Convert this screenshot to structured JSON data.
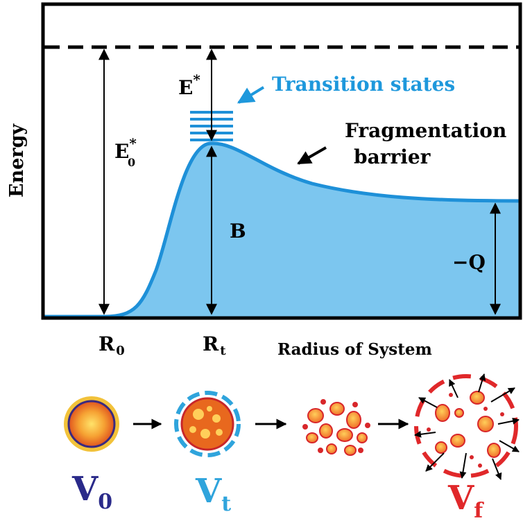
{
  "diagram": {
    "y_axis_label": "Energy",
    "x_axis_label": "Radius of System",
    "x_ticks": {
      "r0": "R",
      "r0_sub": "0",
      "rt": "R",
      "rt_sub": "t"
    },
    "energy_labels": {
      "e_star": "E",
      "e_star_sup": "*",
      "e0_star": "E",
      "e0_star_sup": "*",
      "e0_star_sub": "0",
      "barrier_height": "B",
      "q_value": "−Q"
    },
    "annotations": {
      "transition_states": "Transition states",
      "fragmentation_line1": "Fragmentation",
      "fragmentation_line2": "barrier"
    },
    "stages": [
      {
        "symbol": "V",
        "subscript": "0",
        "color": "#2a2a8a"
      },
      {
        "symbol": "V",
        "subscript": "t",
        "color": "#2fa4dc"
      },
      {
        "symbol": "V",
        "subscript": "f",
        "color": "#e0282a"
      }
    ],
    "colors": {
      "curve": "#1e90d8",
      "fill": "#7cc6ef",
      "transition_text": "#1e98dc",
      "frame": "#000000",
      "fragment_fill": "#f08a2a",
      "fragment_edge": "#d8262a"
    }
  }
}
